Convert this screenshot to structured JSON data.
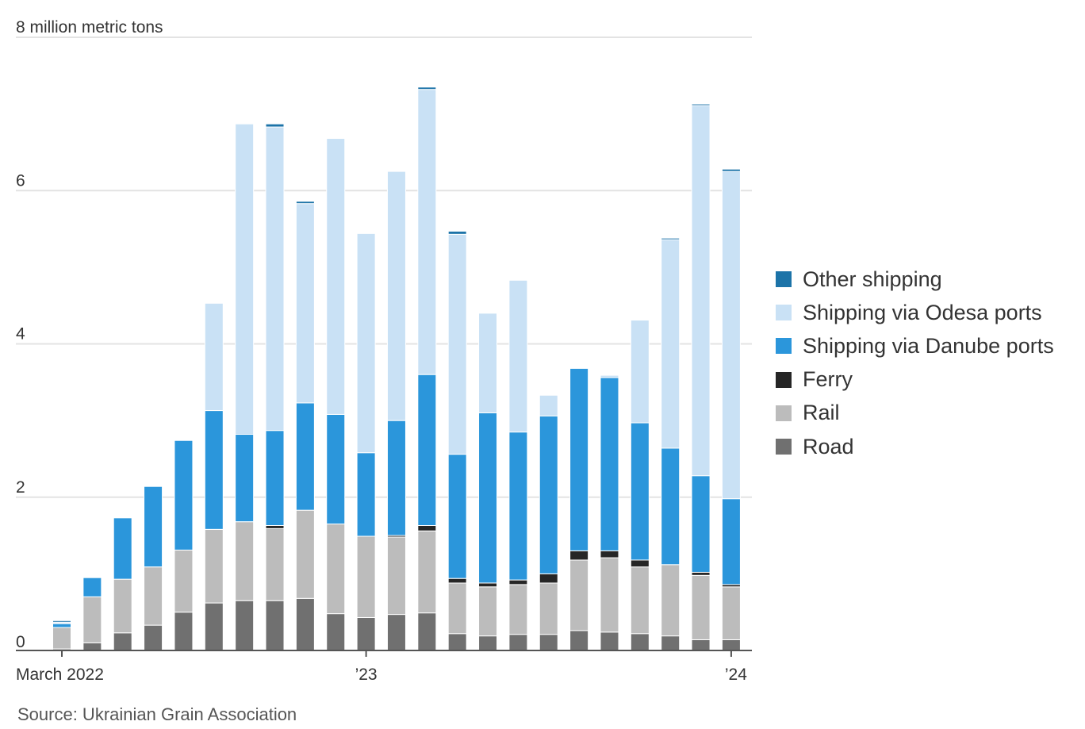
{
  "chart_data": {
    "type": "bar",
    "stacked": true,
    "ylabel": "8 million metric tons",
    "ylim": [
      0,
      8
    ],
    "yticks": [
      {
        "value": 0,
        "label": "0"
      },
      {
        "value": 2,
        "label": "2"
      },
      {
        "value": 4,
        "label": "4"
      },
      {
        "value": 6,
        "label": "6"
      },
      {
        "value": 8,
        "label": "8 million metric tons"
      }
    ],
    "grid": true,
    "legend_position": "right",
    "categories": [
      "2022-03",
      "2022-04",
      "2022-05",
      "2022-06",
      "2022-07",
      "2022-08",
      "2022-09",
      "2022-10",
      "2022-11",
      "2022-12",
      "2023-01",
      "2023-02",
      "2023-03",
      "2023-04",
      "2023-05",
      "2023-06",
      "2023-07",
      "2023-08",
      "2023-09",
      "2023-10",
      "2023-11",
      "2023-12",
      "2024-01"
    ],
    "x_tick_labels": [
      {
        "index": 0,
        "label": "March 2022"
      },
      {
        "index": 10,
        "label": "’23"
      },
      {
        "index": 22,
        "label": "’24"
      }
    ],
    "series": [
      {
        "name": "Road",
        "color": "#707070",
        "values": [
          0.02,
          0.1,
          0.23,
          0.33,
          0.5,
          0.62,
          0.65,
          0.65,
          0.68,
          0.48,
          0.43,
          0.47,
          0.49,
          0.22,
          0.19,
          0.21,
          0.21,
          0.26,
          0.24,
          0.22,
          0.19,
          0.14,
          0.14
        ]
      },
      {
        "name": "Rail",
        "color": "#bcbcbc",
        "values": [
          0.28,
          0.6,
          0.7,
          0.76,
          0.81,
          0.96,
          1.03,
          0.94,
          1.15,
          1.17,
          1.06,
          1.01,
          1.07,
          0.66,
          0.64,
          0.65,
          0.67,
          0.92,
          0.97,
          0.87,
          0.93,
          0.84,
          0.69
        ]
      },
      {
        "name": "Ferry",
        "color": "#262626",
        "values": [
          0,
          0,
          0,
          0,
          0,
          0,
          0,
          0.04,
          0,
          0,
          0,
          0.02,
          0.07,
          0.06,
          0.05,
          0.06,
          0.12,
          0.12,
          0.09,
          0.09,
          0,
          0.04,
          0.03
        ]
      },
      {
        "name": "Shipping via Danube ports",
        "color": "#2b96db",
        "values": [
          0.05,
          0.25,
          0.8,
          1.05,
          1.43,
          1.55,
          1.14,
          1.24,
          1.4,
          1.43,
          1.09,
          1.5,
          1.97,
          1.62,
          2.22,
          1.93,
          2.06,
          2.38,
          2.26,
          1.79,
          1.52,
          1.26,
          1.12
        ]
      },
      {
        "name": "Shipping via Odesa ports",
        "color": "#c9e1f5",
        "values": [
          0.02,
          0,
          0,
          0,
          0,
          1.4,
          4.05,
          3.96,
          2.6,
          3.6,
          2.86,
          3.25,
          3.72,
          2.87,
          1.3,
          1.98,
          0.27,
          0,
          0.03,
          1.34,
          2.72,
          4.83,
          4.27
        ]
      },
      {
        "name": "Other shipping",
        "color": "#1c73a8",
        "values": [
          0.02,
          0,
          0,
          0,
          0,
          0,
          0,
          0.04,
          0.03,
          0,
          0,
          0,
          0.03,
          0.04,
          0,
          0,
          0,
          0,
          0,
          0,
          0.02,
          0.02,
          0.03
        ]
      }
    ]
  },
  "legend": {
    "items": [
      {
        "label": "Other shipping",
        "color": "#1c73a8"
      },
      {
        "label": "Shipping via Odesa ports",
        "color": "#c9e1f5"
      },
      {
        "label": "Shipping via Danube ports",
        "color": "#2b96db"
      },
      {
        "label": "Ferry",
        "color": "#262626"
      },
      {
        "label": "Rail",
        "color": "#bcbcbc"
      },
      {
        "label": "Road",
        "color": "#707070"
      }
    ]
  },
  "source": "Source: Ukrainian Grain Association"
}
